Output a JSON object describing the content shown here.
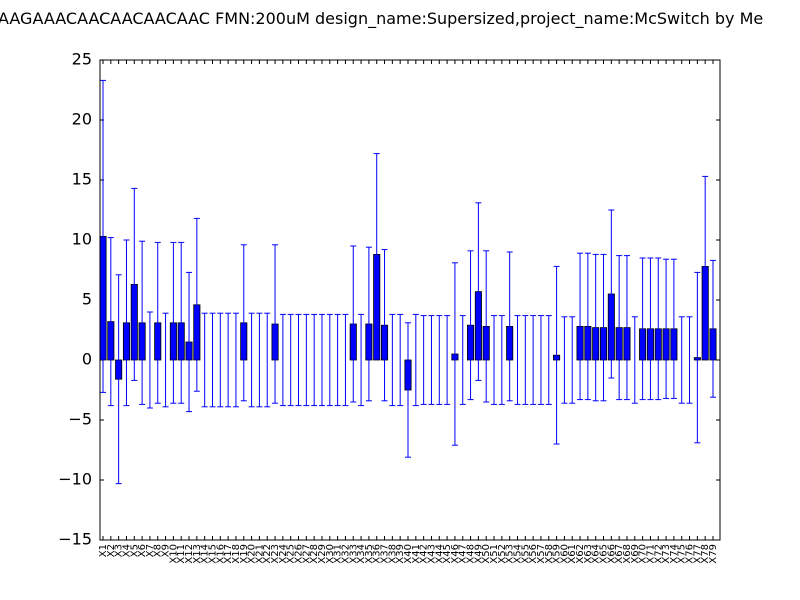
{
  "chart_data": {
    "type": "bar",
    "title": "AAGAAACAACAACAACAAC  FMN:200uM  design_name:Supersized,project_name:McSwitch by Me",
    "categories": [
      "X1",
      "X2",
      "X3",
      "X4",
      "X5",
      "X6",
      "X7",
      "X8",
      "X9",
      "X10",
      "X11",
      "X12",
      "X13",
      "X14",
      "X15",
      "X16",
      "X17",
      "X18",
      "X19",
      "X20",
      "X21",
      "X22",
      "X23",
      "X24",
      "X25",
      "X26",
      "X27",
      "X28",
      "X29",
      "X30",
      "X31",
      "X32",
      "X33",
      "X34",
      "X35",
      "X36",
      "X37",
      "X38",
      "X39",
      "X40",
      "X41",
      "X42",
      "X43",
      "X44",
      "X45",
      "X46",
      "X47",
      "X48",
      "X49",
      "X50",
      "X51",
      "X52",
      "X53",
      "X54",
      "X55",
      "X56",
      "X57",
      "X58",
      "X59",
      "X60",
      "X61",
      "X62",
      "X63",
      "X64",
      "X65",
      "X66",
      "X67",
      "X68",
      "X69",
      "X70",
      "X71",
      "X72",
      "X73",
      "X74",
      "X75",
      "X76",
      "X77",
      "X78",
      "X79"
    ],
    "values": [
      10.3,
      3.2,
      -1.6,
      3.1,
      6.3,
      3.1,
      0,
      3.1,
      0,
      3.1,
      3.1,
      1.5,
      4.6,
      0,
      0,
      0,
      0,
      0,
      3.1,
      0,
      0,
      0,
      3.0,
      0,
      0,
      0,
      0,
      0,
      0,
      0,
      0,
      0,
      3.0,
      0,
      3.0,
      8.8,
      2.9,
      0,
      0,
      -2.5,
      0,
      0,
      0,
      0,
      0,
      0.5,
      0,
      2.9,
      5.7,
      2.8,
      0,
      0,
      2.8,
      0,
      0,
      0,
      0,
      0,
      0.4,
      0,
      0,
      2.8,
      2.8,
      2.7,
      2.7,
      5.5,
      2.7,
      2.7,
      0,
      2.6,
      2.6,
      2.6,
      2.6,
      2.6,
      0,
      0,
      0.2,
      7.8,
      2.6
    ],
    "errors": [
      13.0,
      7.0,
      8.7,
      6.9,
      8.0,
      6.8,
      4.0,
      6.7,
      3.9,
      6.7,
      6.7,
      5.8,
      7.2,
      3.9,
      3.9,
      3.9,
      3.9,
      3.9,
      6.5,
      3.9,
      3.9,
      3.9,
      6.6,
      3.8,
      3.8,
      3.8,
      3.8,
      3.8,
      3.8,
      3.8,
      3.8,
      3.8,
      6.5,
      3.8,
      6.4,
      8.4,
      6.3,
      3.8,
      3.8,
      5.6,
      3.8,
      3.7,
      3.7,
      3.7,
      3.7,
      7.6,
      3.7,
      6.2,
      7.4,
      6.3,
      3.7,
      3.7,
      6.2,
      3.7,
      3.7,
      3.7,
      3.7,
      3.7,
      7.4,
      3.6,
      3.6,
      6.1,
      6.1,
      6.1,
      6.1,
      7.0,
      6.0,
      6.0,
      3.6,
      5.9,
      5.9,
      5.9,
      5.8,
      5.8,
      3.6,
      3.6,
      7.1,
      7.5,
      5.7
    ],
    "color": "#0000ff",
    "error_color": "#0000ff",
    "ylim": [
      -15,
      25
    ],
    "yticks": [
      {
        "value": -15,
        "label": "−15"
      },
      {
        "value": -10,
        "label": "−10"
      },
      {
        "value": -5,
        "label": "−5"
      },
      0,
      5,
      10,
      15,
      20,
      25
    ],
    "grid": false
  }
}
